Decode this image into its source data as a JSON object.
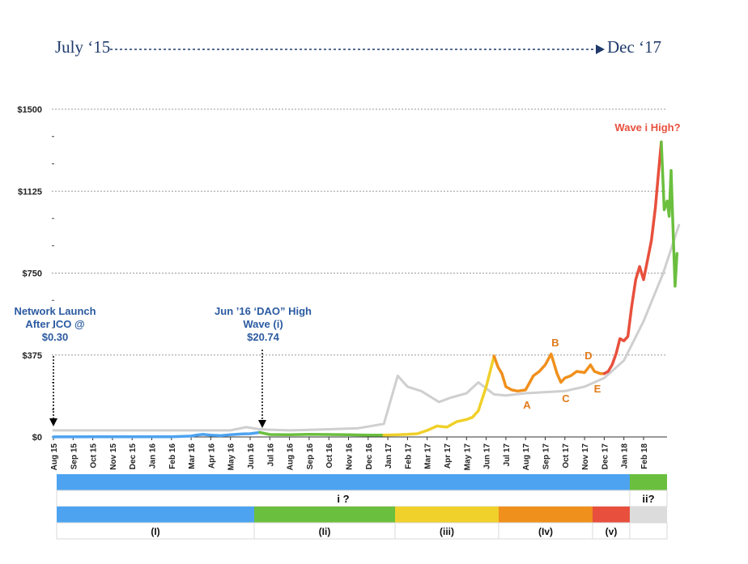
{
  "header": {
    "start_label": "July ‘15",
    "end_label": "Dec ‘17"
  },
  "annotations": {
    "launch_line1": "Network Launch",
    "launch_line2": "After ICO @",
    "launch_value": "$0.30",
    "dao_line1": "Jun ’16 ‘DAO” High",
    "dao_line2": "Wave (i)",
    "dao_value": "$20.74",
    "wave_high": "Wave i High?",
    "triangle_labels": [
      "A",
      "B",
      "C",
      "D",
      "E"
    ]
  },
  "colors": {
    "wave_I": "#4da3f0",
    "wave_II": "#6bbf3e",
    "wave_III": "#f0d02a",
    "wave_IV": "#f0901c",
    "wave_V": "#e8503d",
    "wave_ii": "#6bbf3e",
    "moving_avg": "#cfcfcf",
    "annotation_blue": "#2b5aa0",
    "annotation_orange": "#e07a1a",
    "annotation_red": "#e8503d"
  },
  "chart_data": {
    "type": "line",
    "title": "",
    "xlabel": "",
    "ylabel": "",
    "ylim": [
      0,
      1500
    ],
    "y_ticks": [
      "$1500",
      "$1125",
      "$750",
      "$375",
      "$0"
    ],
    "x_ticks": [
      "Aug 15",
      "Sep 15",
      "Oct 15",
      "Nov 15",
      "Dec 15",
      "Jan 16",
      "Feb 16",
      "Mar 16",
      "Apr 16",
      "May 16",
      "Jun 16",
      "Jul 16",
      "Aug 16",
      "Sep 16",
      "Oct 16",
      "Nov 16",
      "Dec 16",
      "Jan 17",
      "Feb 17",
      "Mar 17",
      "Apr 17",
      "May 17",
      "Jun 17",
      "Jul 17",
      "Aug 17",
      "Sep 17",
      "Oct 17",
      "Nov 17",
      "Dec 17",
      "Jan 18",
      "Feb 18"
    ],
    "grid": true,
    "series": [
      {
        "wave": "(I)",
        "x": [
          0,
          2,
          4,
          6,
          7,
          7.3,
          7.6,
          8,
          8.5,
          9,
          9.3,
          9.6,
          10,
          10.5
        ],
        "y": [
          0.5,
          1,
          1,
          1,
          4,
          9,
          12,
          8,
          6,
          10,
          12,
          14,
          15,
          20.7
        ]
      },
      {
        "wave": "(II)",
        "x": [
          10.5,
          11,
          12,
          13,
          14,
          15,
          16,
          16.8
        ],
        "y": [
          20.7,
          11,
          10,
          12,
          11,
          10,
          8,
          8
        ]
      },
      {
        "wave": "(III)",
        "x": [
          16.8,
          17.5,
          18,
          18.5,
          19,
          19.5,
          20,
          20.5,
          21,
          21.3,
          21.6,
          22,
          22.2,
          22.4
        ],
        "y": [
          8,
          10,
          12,
          15,
          30,
          50,
          45,
          70,
          80,
          90,
          120,
          230,
          300,
          370
        ]
      },
      {
        "wave": "(IV)",
        "x": [
          22.4,
          22.6,
          22.8,
          23,
          23.3,
          23.6,
          24,
          24.4,
          24.7,
          25,
          25.3,
          25.6,
          25.8,
          26,
          26.3,
          26.6,
          27,
          27.3,
          27.5,
          27.8,
          28
        ],
        "y": [
          370,
          320,
          290,
          230,
          215,
          210,
          215,
          280,
          300,
          330,
          380,
          290,
          250,
          270,
          280,
          300,
          295,
          330,
          300,
          290,
          290
        ]
      },
      {
        "wave": "(V)",
        "x": [
          28,
          28.2,
          28.4,
          28.6,
          28.8,
          29,
          29.2,
          29.4,
          29.6,
          29.8,
          30,
          30.2,
          30.4,
          30.6,
          30.75,
          30.9
        ],
        "y": [
          290,
          300,
          330,
          380,
          450,
          440,
          460,
          600,
          720,
          780,
          720,
          810,
          900,
          1050,
          1200,
          1350
        ]
      },
      {
        "wave": "ii?",
        "x": [
          30.9,
          31.05,
          31.2,
          31.3,
          31.4,
          31.5,
          31.6,
          31.7
        ],
        "y": [
          1350,
          1040,
          1080,
          1010,
          1220,
          940,
          690,
          840
        ]
      },
      {
        "name": "moving-average",
        "x": [
          0,
          9,
          9.8,
          10.5,
          11,
          12,
          14,
          15.5,
          16.8,
          17.5,
          18,
          18.7,
          19.6,
          20.2,
          21,
          21.6,
          22.4,
          23,
          24,
          25,
          26,
          27,
          28,
          29,
          30,
          31,
          31.8
        ],
        "y": [
          30,
          30,
          45,
          35,
          33,
          30,
          35,
          40,
          60,
          280,
          230,
          210,
          160,
          180,
          200,
          250,
          195,
          190,
          200,
          205,
          210,
          230,
          270,
          350,
          530,
          750,
          970
        ]
      }
    ]
  },
  "wave_bar": {
    "row1_main": "i ?",
    "row1_side": "ii?",
    "row3_labels": [
      "(I)",
      "(Ii)",
      "(iii)",
      "(Iv)",
      "(v)",
      ""
    ]
  }
}
